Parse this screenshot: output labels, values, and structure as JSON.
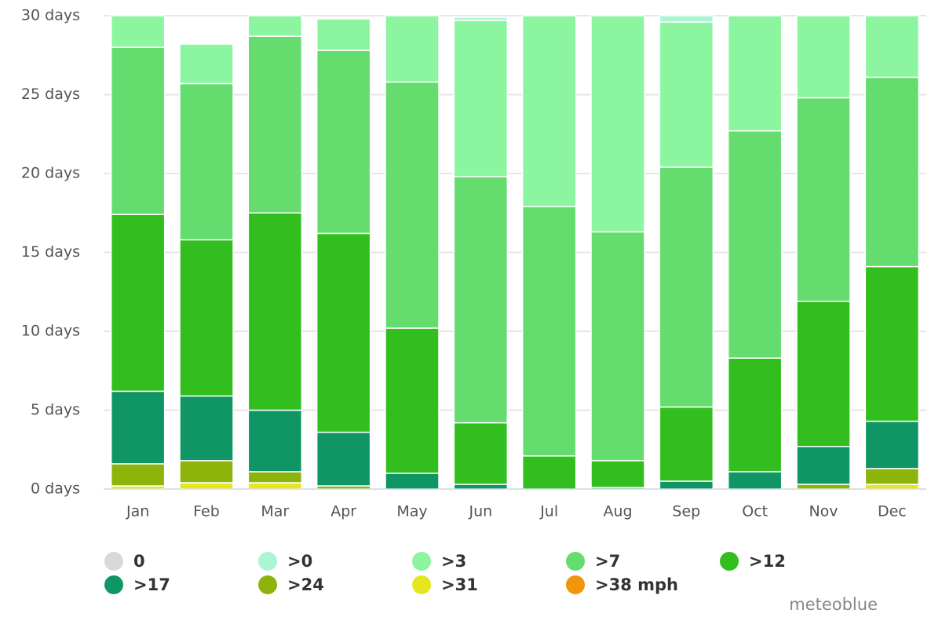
{
  "chart_data": {
    "type": "bar",
    "stacked": true,
    "categories": [
      "Jan",
      "Feb",
      "Mar",
      "Apr",
      "May",
      "Jun",
      "Jul",
      "Aug",
      "Sep",
      "Oct",
      "Nov",
      "Dec"
    ],
    "series": [
      {
        "name": ">38 mph",
        "color": "#f0960a",
        "values": [
          0,
          0,
          0,
          0,
          0,
          0,
          0,
          0,
          0,
          0,
          0,
          0
        ]
      },
      {
        "name": ">31",
        "color": "#e6e61e",
        "values": [
          0.2,
          0.4,
          0.4,
          0,
          0,
          0,
          0,
          0,
          0,
          0,
          0,
          0.3
        ]
      },
      {
        "name": ">24",
        "color": "#8cb40a",
        "values": [
          1.4,
          1.4,
          0.7,
          0.2,
          0,
          0,
          0,
          0,
          0,
          0,
          0.3,
          1.0
        ]
      },
      {
        "name": ">17",
        "color": "#0f9664",
        "values": [
          4.6,
          4.1,
          3.9,
          3.4,
          1.0,
          0.3,
          0,
          0.1,
          0.5,
          1.1,
          2.4,
          3.0
        ]
      },
      {
        "name": ">12",
        "color": "#32be1e",
        "values": [
          11.2,
          9.9,
          12.5,
          12.6,
          9.2,
          3.9,
          2.1,
          1.7,
          4.7,
          7.2,
          9.2,
          9.8
        ]
      },
      {
        "name": ">7",
        "color": "#64dc6e",
        "values": [
          10.6,
          9.9,
          11.2,
          11.6,
          15.6,
          15.6,
          15.8,
          14.5,
          15.2,
          14.4,
          12.9,
          12.0
        ]
      },
      {
        "name": ">3",
        "color": "#8cf5a0",
        "values": [
          2.0,
          2.5,
          1.3,
          2.0,
          4.2,
          9.9,
          12.1,
          13.7,
          9.2,
          7.3,
          5.2,
          3.9
        ]
      },
      {
        "name": ">0",
        "color": "#aaf5d2",
        "values": [
          0,
          0,
          0,
          0,
          0,
          0.2,
          0,
          0,
          0.4,
          0,
          0,
          0
        ]
      },
      {
        "name": "0",
        "color": "#ddd8d8",
        "values": [
          0,
          0,
          0,
          0,
          0,
          0,
          0,
          0,
          0,
          0,
          0,
          0
        ]
      }
    ],
    "legend_order": [
      8,
      7,
      6,
      5,
      4,
      3,
      2,
      1,
      0
    ],
    "ylim": [
      0,
      30
    ],
    "yticks": [
      {
        "value": 0,
        "label": "0 days"
      },
      {
        "value": 5,
        "label": "5 days"
      },
      {
        "value": 10,
        "label": "10 days"
      },
      {
        "value": 15,
        "label": "15 days"
      },
      {
        "value": 20,
        "label": "20 days"
      },
      {
        "value": 25,
        "label": "25 days"
      },
      {
        "value": 30,
        "label": "30 days"
      }
    ],
    "grid": true,
    "credits": "meteoblue"
  }
}
